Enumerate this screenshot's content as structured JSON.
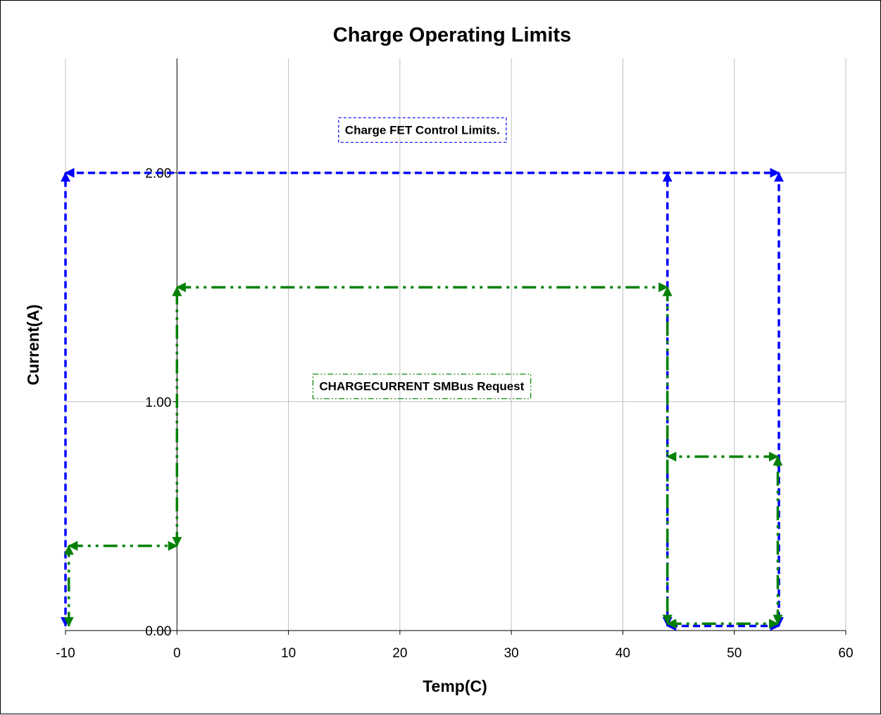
{
  "chart_data": {
    "type": "line",
    "title": "Charge Operating Limits",
    "xlabel": "Temp(C)",
    "ylabel": "Current(A)",
    "xlim": [
      -10,
      60
    ],
    "ylim": [
      0,
      2.5
    ],
    "x_ticks": [
      "-10",
      "0",
      "10",
      "20",
      "30",
      "40",
      "50",
      "60"
    ],
    "y_ticks": [
      "0.00",
      "1.00",
      "2.00"
    ],
    "grid": true,
    "legend": "none",
    "annotations": [
      {
        "text": "Charge FET Control Limits.",
        "x": 14.5,
        "y": 2.17,
        "color": "#0000ff"
      },
      {
        "text": "CHARGECURRENT SMBus Request",
        "x": 12.2,
        "y": 1.05,
        "color": "#008000"
      }
    ],
    "series": [
      {
        "color": "#0000ff",
        "line_style": "dashed",
        "arrows": true,
        "points": [
          [
            -10,
            0.02
          ],
          [
            -10,
            2.0
          ],
          [
            54,
            2.0
          ],
          [
            54,
            0.02
          ],
          [
            44,
            0.02
          ],
          [
            44,
            2.0
          ]
        ]
      },
      {
        "color": "#008000",
        "line_style": "dash-dot-dot",
        "arrows": true,
        "points": [
          [
            -9.7,
            0.02
          ],
          [
            -9.7,
            0.37
          ],
          [
            0,
            0.37
          ],
          [
            0,
            1.5
          ],
          [
            44,
            1.5
          ],
          [
            44,
            0.03
          ],
          [
            53.9,
            0.03
          ],
          [
            53.9,
            0.76
          ],
          [
            44,
            0.76
          ]
        ]
      }
    ]
  }
}
